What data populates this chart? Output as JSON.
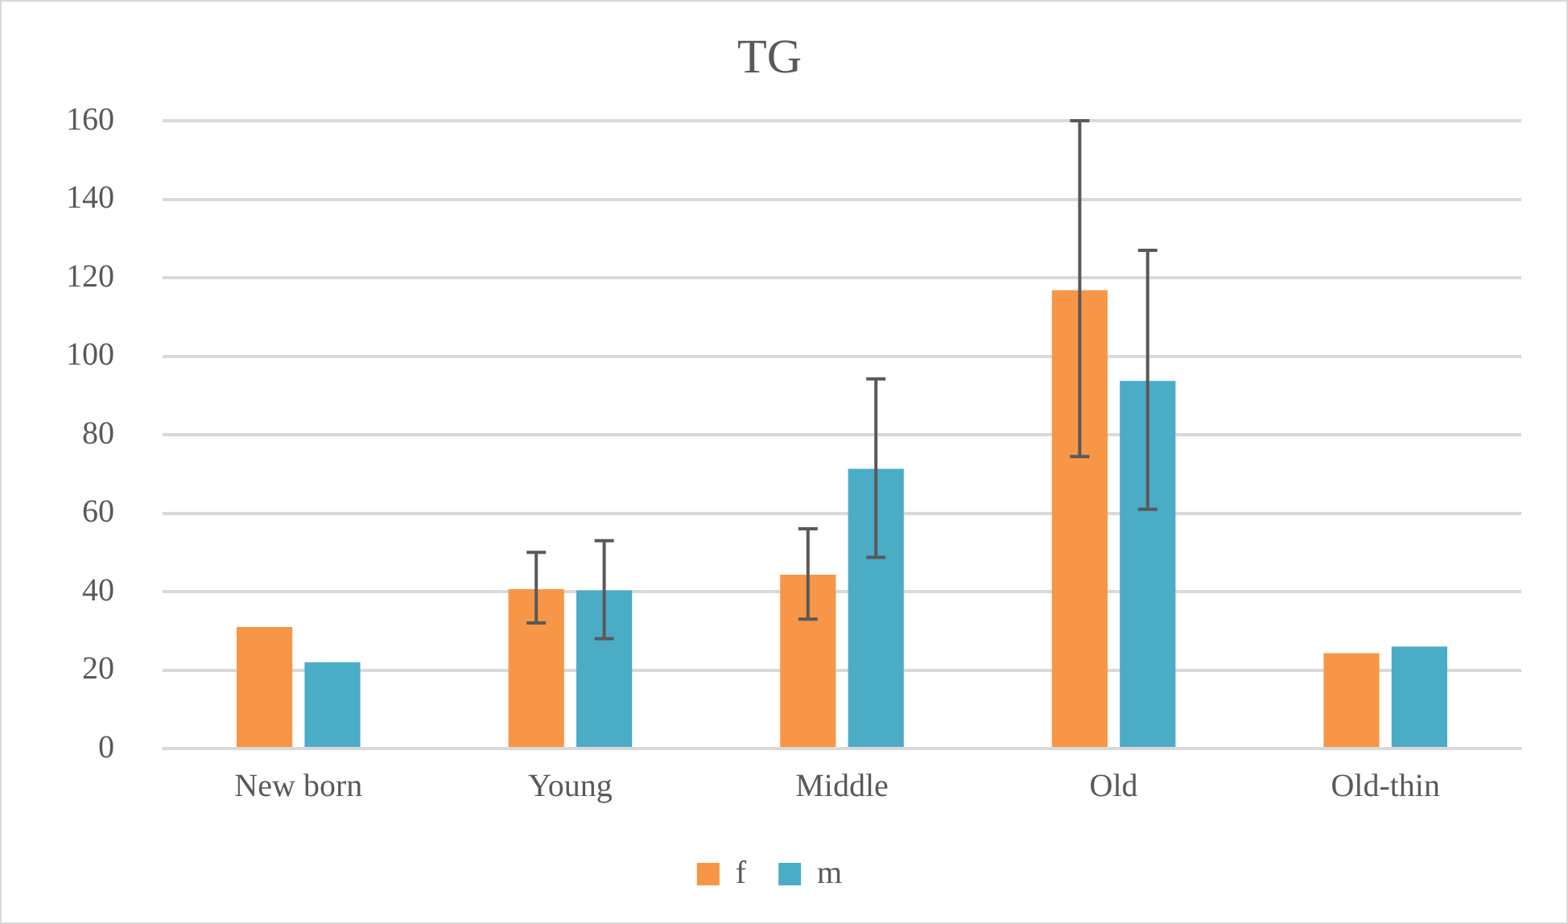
{
  "chart_data": {
    "type": "bar",
    "title": "TG",
    "categories": [
      "New born",
      "Young",
      "Middle",
      "Old",
      "Old-thin"
    ],
    "series": [
      {
        "name": "f",
        "color": "#f79646",
        "values": [
          31,
          40.6,
          44.3,
          116.8,
          24.3
        ],
        "errors": [
          null,
          [
            32,
            50
          ],
          [
            33,
            56
          ],
          [
            74.4,
            160
          ],
          null
        ]
      },
      {
        "name": "m",
        "color": "#4bacc6",
        "values": [
          22,
          40.3,
          71.3,
          93.7,
          26
        ],
        "errors": [
          null,
          [
            28,
            53
          ],
          [
            48.7,
            94.2
          ],
          [
            61,
            127
          ],
          null
        ]
      }
    ],
    "ylim": [
      0,
      160
    ],
    "yticks": [
      0,
      20,
      40,
      60,
      80,
      100,
      120,
      140,
      160
    ],
    "grid": "y",
    "legend": "bottom"
  }
}
